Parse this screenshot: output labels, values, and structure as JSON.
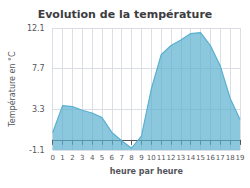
{
  "chart_data": {
    "type": "area",
    "title": "Evolution de la température",
    "xlabel": "heure par heure",
    "ylabel": "Température en °C",
    "x": [
      0,
      1,
      2,
      3,
      4,
      5,
      6,
      7,
      8,
      9,
      10,
      11,
      12,
      13,
      14,
      15,
      16,
      17,
      18,
      19
    ],
    "values": [
      0.8,
      3.7,
      3.6,
      3.2,
      2.9,
      2.4,
      0.8,
      -0.1,
      -0.9,
      0.4,
      5.5,
      9.2,
      10.2,
      10.8,
      11.5,
      11.6,
      10.2,
      8.0,
      4.5,
      2.2
    ],
    "color": "#5ab0d0",
    "xlim": [
      0,
      19
    ],
    "xticks": [
      0,
      1,
      2,
      3,
      4,
      5,
      6,
      7,
      8,
      9,
      10,
      11,
      12,
      13,
      14,
      15,
      16,
      17,
      18,
      19
    ],
    "ylim": [
      -1.1,
      12.1
    ],
    "yticks": [
      -1.1,
      3.3,
      7.7,
      12.1
    ],
    "grid": true
  }
}
